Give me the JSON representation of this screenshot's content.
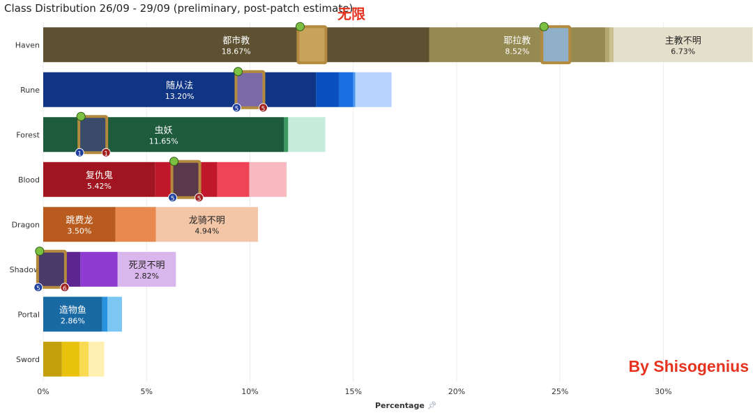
{
  "title": "Class Distribution 26/09 - 29/09 (preliminary, post-patch estimate)",
  "overlay_text": "无限",
  "author_text": "By Shisogenius",
  "colors": {
    "overlay": "#e53320",
    "grid": "#ececec"
  },
  "chart_data": {
    "type": "bar",
    "orientation": "horizontal",
    "stacked": true,
    "title": "Class Distribution 26/09 - 29/09 (preliminary, post-patch estimate)",
    "xlabel": "Percentage",
    "ylabel": "",
    "xlim": [
      0,
      34
    ],
    "xticks": [
      0,
      5,
      10,
      15,
      20,
      25,
      30
    ],
    "xtick_labels": [
      "0%",
      "5%",
      "10%",
      "15%",
      "20%",
      "25%",
      "30%"
    ],
    "grid": true,
    "categories": [
      "Haven",
      "Rune",
      "Forest",
      "Blood",
      "Dragon",
      "Shadow",
      "Portal",
      "Sword"
    ],
    "classes": [
      {
        "name": "Haven",
        "segments": [
          {
            "label": "都市教",
            "value": 18.67,
            "color": "#5d5131"
          },
          {
            "label": "耶拉教",
            "value": 8.52,
            "color": "#968a53"
          },
          {
            "label": "",
            "value": 0.2,
            "color": "#b3a771"
          },
          {
            "label": "",
            "value": 0.2,
            "color": "#c9bf8f"
          },
          {
            "label": "主教不明",
            "value": 6.73,
            "color": "#e4dfca"
          }
        ],
        "card": {
          "x": 13.0,
          "name": "haven-card-art",
          "frame": "#b48a3e",
          "art": "#c8a35c",
          "gem": "#7bc043"
        },
        "card2": {
          "x": 24.8,
          "name": "haven-card-art-2",
          "frame": "#b48a3e",
          "art": "#8fb0c8",
          "gem": "#7bc043"
        }
      },
      {
        "name": "Rune",
        "segments": [
          {
            "label": "随从法",
            "value": 13.2,
            "color": "#0f3584"
          },
          {
            "label": "",
            "value": 1.1,
            "color": "#0a4fc0"
          },
          {
            "label": "",
            "value": 0.7,
            "color": "#1a6fe0"
          },
          {
            "label": "",
            "value": 0.1,
            "color": "#4b97f0"
          },
          {
            "label": "",
            "value": 1.75,
            "color": "#b5d3fc"
          }
        ],
        "card": {
          "x": 10.0,
          "name": "rune-card-art",
          "frame": "#b48a3e",
          "art": "#7a6aa8",
          "gem": "#7bc043",
          "cost_left": "5",
          "cost_right": "5"
        }
      },
      {
        "name": "Forest",
        "segments": [
          {
            "label": "虫妖",
            "value": 11.65,
            "color": "#1e5a3c"
          },
          {
            "label": "",
            "value": 0.2,
            "color": "#3a9a62"
          },
          {
            "label": "",
            "value": 1.8,
            "color": "#c6ecdb"
          }
        ],
        "card": {
          "x": 2.4,
          "name": "forest-card-art",
          "frame": "#b48a3e",
          "art": "#3a4a6a",
          "gem": "#7bc043",
          "cost_left": "1",
          "cost_right": "1"
        }
      },
      {
        "name": "Blood",
        "segments": [
          {
            "label": "复仇鬼",
            "value": 5.42,
            "color": "#a0151f"
          },
          {
            "label": "",
            "value": 3.0,
            "color": "#c0182a"
          },
          {
            "label": "",
            "value": 1.55,
            "color": "#ee4455"
          },
          {
            "label": "",
            "value": 1.8,
            "color": "#f9b9c0"
          }
        ],
        "card": {
          "x": 6.9,
          "name": "blood-card-art",
          "frame": "#b48a3e",
          "art": "#5a3a4a",
          "gem": "#7bc043",
          "cost_left": "5",
          "cost_right": "5"
        }
      },
      {
        "name": "Dragon",
        "segments": [
          {
            "label": "跳费龙",
            "value": 3.5,
            "color": "#b95b1f"
          },
          {
            "label": "",
            "value": 1.95,
            "color": "#e88a4e"
          },
          {
            "label": "龙骑不明",
            "value": 4.94,
            "color": "#f3c6a7"
          }
        ]
      },
      {
        "name": "Shadow",
        "segments": [
          {
            "label": "",
            "value": 1.8,
            "color": "#5c2590"
          },
          {
            "label": "",
            "value": 1.8,
            "color": "#8f3bd1"
          },
          {
            "label": "死灵不明",
            "value": 2.82,
            "color": "#d9b6ec"
          }
        ],
        "card": {
          "x": 0.4,
          "name": "shadow-card-art",
          "frame": "#b48a3e",
          "art": "#4a3a6a",
          "gem": "#7bc043",
          "cost_left": "5",
          "cost_right": "6"
        }
      },
      {
        "name": "Portal",
        "segments": [
          {
            "label": "造物鱼",
            "value": 2.86,
            "color": "#1969a3"
          },
          {
            "label": "",
            "value": 0.25,
            "color": "#2892e0"
          },
          {
            "label": "",
            "value": 0.7,
            "color": "#7cc6f3"
          }
        ]
      },
      {
        "name": "Sword",
        "segments": [
          {
            "label": "",
            "value": 0.9,
            "color": "#c4a10c"
          },
          {
            "label": "",
            "value": 0.85,
            "color": "#e8c20d"
          },
          {
            "label": "",
            "value": 0.45,
            "color": "#f9da50"
          },
          {
            "label": "",
            "value": 0.75,
            "color": "#fdf0b0"
          }
        ]
      }
    ]
  }
}
